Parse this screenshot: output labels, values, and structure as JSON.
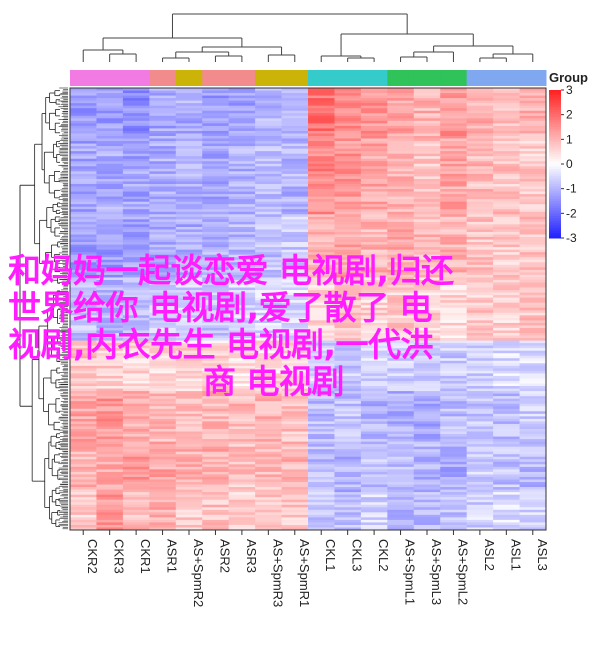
{
  "chart_data": {
    "type": "heatmap",
    "columns": [
      "CKR2",
      "CKR3",
      "CKR1",
      "ASR1",
      "AS+SpmR2",
      "ASR2",
      "ASR3",
      "AS+SpmR3",
      "AS+SpmR1",
      "CKL1",
      "CKL3",
      "CKL2",
      "AS+SpmL1",
      "AS+SpmL3",
      "AS+SpmL2",
      "ASL2",
      "ASL1",
      "ASL3"
    ],
    "groups": [
      {
        "name": "CKR",
        "color": "#f27be3",
        "columns": [
          "CKR2",
          "CKR3",
          "CKR1"
        ]
      },
      {
        "name": "ASR",
        "color": "#f28b8b",
        "columns": [
          "ASR1",
          "ASR2",
          "ASR3"
        ]
      },
      {
        "name": "AS+SpmR",
        "color": "#cbb307",
        "columns": [
          "AS+SpmR2",
          "AS+SpmR3",
          "AS+SpmR1"
        ]
      },
      {
        "name": "CKL",
        "color": "#35cbcb",
        "columns": [
          "CKL1",
          "CKL3",
          "CKL2"
        ]
      },
      {
        "name": "AS+SpmL",
        "color": "#2fc35a",
        "columns": [
          "AS+SpmL1",
          "AS+SpmL3",
          "AS+SpmL2"
        ]
      },
      {
        "name": "ASL",
        "color": "#7fa8f0",
        "columns": [
          "ASL2",
          "ASL1",
          "ASL3"
        ]
      }
    ],
    "group_bar_order": [
      "CKR",
      "CKR",
      "CKR",
      "ASR",
      "AS+SpmR",
      "ASR",
      "ASR",
      "AS+SpmR",
      "AS+SpmR",
      "CKL",
      "CKL",
      "CKL",
      "AS+SpmL",
      "AS+SpmL",
      "AS+SpmL",
      "ASL",
      "ASL",
      "ASL"
    ],
    "legend_title": "Group",
    "colorbar": {
      "ticks": [
        3,
        2,
        1,
        0,
        -1,
        -2,
        -3
      ],
      "min": -3,
      "max": 3,
      "low_color": "#2020ff",
      "mid_color": "#ffffff",
      "high_color": "#ff2020"
    },
    "row_blocks": [
      {
        "rows": 20,
        "values": [
          -1.4,
          -1.3,
          -1.5,
          -1.2,
          -1.1,
          -1.3,
          -1.2,
          -1.0,
          -1.1,
          1.9,
          1.6,
          1.4,
          1.2,
          1.0,
          1.4,
          1.1,
          0.9,
          1.0
        ]
      },
      {
        "rows": 30,
        "values": [
          -1.2,
          -1.1,
          -1.2,
          -1.1,
          -1.0,
          -1.2,
          -1.0,
          -0.9,
          -1.0,
          1.6,
          1.4,
          1.2,
          1.0,
          0.8,
          1.2,
          0.9,
          0.8,
          0.7
        ]
      },
      {
        "rows": 25,
        "values": [
          -1.3,
          -1.3,
          -1.2,
          -1.1,
          -1.1,
          -1.0,
          -0.9,
          -0.8,
          -0.7,
          1.0,
          1.2,
          1.0,
          1.1,
          0.9,
          1.0,
          0.8,
          0.7,
          0.8
        ]
      },
      {
        "rows": 25,
        "values": [
          -0.8,
          -0.9,
          -0.8,
          -0.7,
          -0.6,
          -0.7,
          -0.6,
          -0.5,
          -0.5,
          0.6,
          0.8,
          0.6,
          0.7,
          0.6,
          0.5,
          0.7,
          0.6,
          0.8
        ]
      },
      {
        "rows": 20,
        "values": [
          0.8,
          0.7,
          0.6,
          0.5,
          0.6,
          0.5,
          0.4,
          0.5,
          0.6,
          -0.6,
          -0.7,
          -0.5,
          -0.6,
          -0.8,
          -0.7,
          -0.6,
          -0.5,
          -0.5
        ]
      },
      {
        "rows": 20,
        "values": [
          1.2,
          1.4,
          1.1,
          0.9,
          0.8,
          1.0,
          0.9,
          1.0,
          0.8,
          -0.9,
          -0.8,
          -1.0,
          -1.1,
          -1.2,
          -0.9,
          -0.8,
          -0.9,
          -0.7
        ]
      },
      {
        "rows": 20,
        "values": [
          1.0,
          1.1,
          1.3,
          1.2,
          1.0,
          1.1,
          0.8,
          0.9,
          1.0,
          -0.9,
          -1.0,
          -0.8,
          -0.9,
          -1.0,
          -1.1,
          -0.7,
          -0.8,
          -0.9
        ]
      },
      {
        "rows": 15,
        "values": [
          0.7,
          1.4,
          0.9,
          1.1,
          0.7,
          0.8,
          0.6,
          0.8,
          0.7,
          -0.7,
          -0.8,
          -0.6,
          -0.9,
          -1.0,
          -0.8,
          -0.6,
          -0.5,
          -0.6
        ]
      }
    ],
    "xlabel": "",
    "ylabel": ""
  },
  "overlay_text": {
    "line1": "和妈妈一起谈恋爱 电视剧,归还",
    "line2": "世界给你 电视剧,爱了散了 电",
    "line3": "视剧,内衣先生 电视剧,一代洪",
    "line4": "商 电视剧"
  }
}
